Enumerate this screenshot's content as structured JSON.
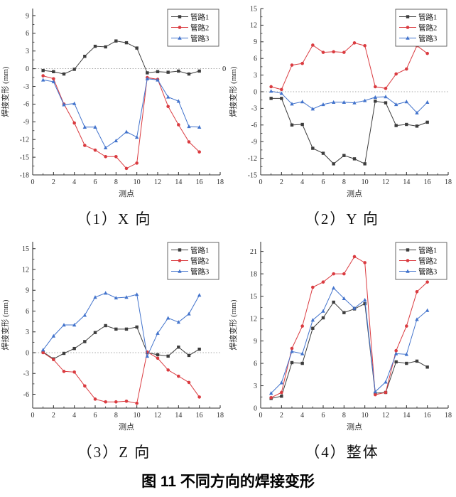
{
  "figure": {
    "caption": "图 11 不同方向的焊接变形"
  },
  "colors": {
    "series1": "#3d3d3d",
    "series2": "#da3b40",
    "series3": "#4273cc",
    "axis": "#2b2b2b",
    "zero_line": "#8a8a8a"
  },
  "chart_data": [
    {
      "type": "line",
      "caption": "（1）X 向",
      "xlabel": "测点",
      "ylabel": "焊接变形 (mm)",
      "x": [
        1,
        2,
        3,
        4,
        5,
        6,
        7,
        8,
        9,
        10,
        11,
        12,
        13,
        14,
        15,
        16
      ],
      "xlim": [
        0,
        18
      ],
      "xticks": [
        0,
        2,
        4,
        6,
        8,
        10,
        12,
        14,
        16,
        18
      ],
      "ylim": [
        -18,
        10.2
      ],
      "yticks": [
        -18,
        -15,
        -12,
        -9,
        -6,
        -3,
        0,
        3,
        6,
        9
      ],
      "grid": false,
      "zero_line": true,
      "zero_label": "0",
      "legend_position": "top-right",
      "series": [
        {
          "name": "管路1",
          "color": "#3d3d3d",
          "marker": "square",
          "values": [
            -0.3,
            -0.5,
            -0.9,
            -0.1,
            2.1,
            3.8,
            3.7,
            4.7,
            4.4,
            3.5,
            -0.7,
            -0.5,
            -0.6,
            -0.4,
            -0.9,
            -0.4
          ]
        },
        {
          "name": "管路2",
          "color": "#da3b40",
          "marker": "circle",
          "values": [
            -1.2,
            -1.7,
            -6.0,
            -9.2,
            -13.0,
            -13.8,
            -14.9,
            -14.9,
            -16.9,
            -16.0,
            -1.5,
            -1.8,
            -6.4,
            -9.5,
            -12.4,
            -14.1
          ]
        },
        {
          "name": "管路3",
          "color": "#4273cc",
          "marker": "triangle",
          "values": [
            -1.9,
            -2.2,
            -6.1,
            -5.9,
            -9.9,
            -9.9,
            -13.4,
            -12.2,
            -10.7,
            -11.6,
            -1.7,
            -1.9,
            -4.8,
            -5.5,
            -9.8,
            -9.9
          ]
        }
      ]
    },
    {
      "type": "line",
      "caption": "（2）Y 向",
      "xlabel": "测点",
      "ylabel": "焊接变形 (mm)",
      "x": [
        1,
        2,
        3,
        4,
        5,
        6,
        7,
        8,
        9,
        10,
        11,
        12,
        13,
        14,
        15,
        16
      ],
      "xlim": [
        0,
        18
      ],
      "xticks": [
        0,
        2,
        4,
        6,
        8,
        10,
        12,
        14,
        16,
        18
      ],
      "ylim": [
        -15,
        15
      ],
      "yticks": [
        -15,
        -12,
        -9,
        -6,
        -3,
        0,
        3,
        6,
        9,
        12,
        15
      ],
      "grid": false,
      "zero_line": true,
      "zero_label": "",
      "legend_position": "top-right",
      "series": [
        {
          "name": "管路1",
          "color": "#3d3d3d",
          "marker": "square",
          "values": [
            -1.2,
            -1.2,
            -6.0,
            -5.9,
            -10.2,
            -11.1,
            -13.0,
            -11.5,
            -12.1,
            -13.0,
            -1.7,
            -2.0,
            -6.1,
            -5.9,
            -6.2,
            -5.5
          ]
        },
        {
          "name": "管路2",
          "color": "#da3b40",
          "marker": "circle",
          "values": [
            0.9,
            0.4,
            4.8,
            5.1,
            8.4,
            7.1,
            7.2,
            7.1,
            8.8,
            8.3,
            0.9,
            0.6,
            3.2,
            4.1,
            8.3,
            6.9
          ]
        },
        {
          "name": "管路3",
          "color": "#4273cc",
          "marker": "triangle",
          "values": [
            0.1,
            -0.3,
            -2.2,
            -1.8,
            -3.1,
            -2.3,
            -1.9,
            -1.9,
            -2.0,
            -1.6,
            -1.0,
            -0.9,
            -2.3,
            -1.8,
            -3.8,
            -1.9
          ]
        }
      ]
    },
    {
      "type": "line",
      "caption": "（3）Z 向",
      "xlabel": "测点",
      "ylabel": "焊接变形 (mm)",
      "x": [
        1,
        2,
        3,
        4,
        5,
        6,
        7,
        8,
        9,
        10,
        11,
        12,
        13,
        14,
        15,
        16
      ],
      "xlim": [
        0,
        18
      ],
      "xticks": [
        0,
        2,
        4,
        6,
        8,
        10,
        12,
        14,
        16,
        18
      ],
      "ylim": [
        -8,
        16
      ],
      "yticks": [
        -6,
        -3,
        0,
        3,
        6,
        9,
        12,
        15
      ],
      "grid": false,
      "zero_line": true,
      "zero_label": "",
      "legend_position": "top-right",
      "series": [
        {
          "name": "管路1",
          "color": "#3d3d3d",
          "marker": "square",
          "values": [
            0.1,
            -0.9,
            -0.1,
            0.6,
            1.6,
            2.9,
            3.9,
            3.4,
            3.4,
            3.7,
            0.0,
            -0.3,
            -0.5,
            0.8,
            -0.4,
            0.5
          ]
        },
        {
          "name": "管路2",
          "color": "#da3b40",
          "marker": "circle",
          "values": [
            0.0,
            -1.0,
            -2.7,
            -2.8,
            -4.8,
            -6.7,
            -7.1,
            -7.1,
            -7.0,
            -7.3,
            0.1,
            -0.8,
            -2.5,
            -3.4,
            -4.3,
            -6.4
          ]
        },
        {
          "name": "管路3",
          "color": "#4273cc",
          "marker": "triangle",
          "values": [
            0.4,
            2.4,
            4.0,
            4.0,
            5.4,
            8.0,
            8.6,
            7.9,
            8.0,
            8.4,
            -0.5,
            2.8,
            5.0,
            4.4,
            5.6,
            8.3
          ]
        }
      ]
    },
    {
      "type": "line",
      "caption": "（4）整体",
      "xlabel": "测点",
      "ylabel": "焊接变形 (mm)",
      "x": [
        1,
        2,
        3,
        4,
        5,
        6,
        7,
        8,
        9,
        10,
        11,
        12,
        13,
        14,
        15,
        16
      ],
      "xlim": [
        0,
        18
      ],
      "xticks": [
        0,
        2,
        4,
        6,
        8,
        10,
        12,
        14,
        16,
        18
      ],
      "ylim": [
        0,
        22.3
      ],
      "yticks": [
        0,
        3,
        6,
        9,
        12,
        15,
        18,
        21
      ],
      "grid": false,
      "zero_line": false,
      "zero_label": "",
      "legend_position": "top-right",
      "series": [
        {
          "name": "管路1",
          "color": "#3d3d3d",
          "marker": "square",
          "values": [
            1.3,
            1.6,
            6.1,
            6.0,
            10.7,
            12.1,
            14.2,
            12.8,
            13.3,
            14.0,
            2.0,
            2.1,
            6.2,
            6.0,
            6.3,
            5.5
          ]
        },
        {
          "name": "管路2",
          "color": "#da3b40",
          "marker": "circle",
          "values": [
            1.4,
            2.1,
            8.0,
            11.0,
            16.2,
            16.9,
            18.0,
            18.0,
            20.3,
            19.5,
            1.8,
            2.1,
            7.7,
            11.0,
            15.6,
            16.9
          ]
        },
        {
          "name": "管路3",
          "color": "#4273cc",
          "marker": "triangle",
          "values": [
            2.0,
            3.4,
            7.6,
            7.3,
            11.8,
            13.0,
            16.1,
            14.7,
            13.4,
            14.5,
            2.2,
            3.5,
            7.3,
            7.2,
            11.9,
            13.1
          ]
        }
      ]
    }
  ]
}
